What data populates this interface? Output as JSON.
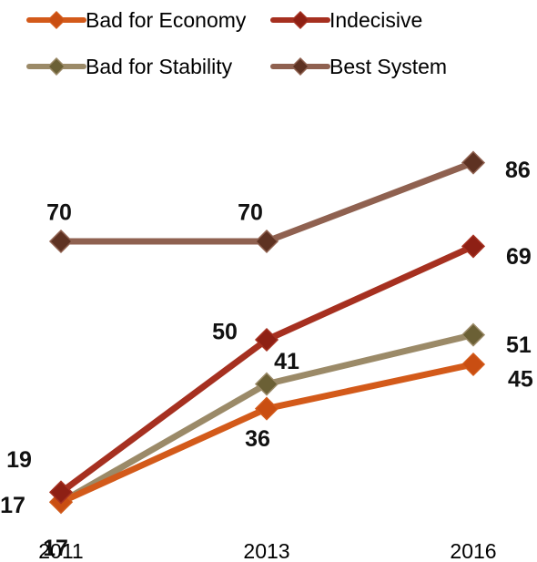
{
  "chart_data": {
    "type": "line",
    "title": "",
    "xlabel": "",
    "ylabel": "",
    "categories": [
      "2011",
      "2013",
      "2016"
    ],
    "ylim": [
      0,
      100
    ],
    "grid": false,
    "legend_position": "top-left",
    "series": [
      {
        "name": "Bad for Economy",
        "values": [
          17,
          36,
          45
        ],
        "color": "#d35a1a",
        "marker": "#c94e12"
      },
      {
        "name": "Indecisive",
        "values": [
          19,
          50,
          69
        ],
        "color": "#a63020",
        "marker": "#8e2014"
      },
      {
        "name": "Bad for Stability",
        "values": [
          17,
          41,
          51
        ],
        "color": "#9b8a68",
        "marker": "#6b6035"
      },
      {
        "name": "Best System",
        "values": [
          70,
          70,
          86
        ],
        "color": "#8f6150",
        "marker": "#5e3222"
      }
    ]
  }
}
